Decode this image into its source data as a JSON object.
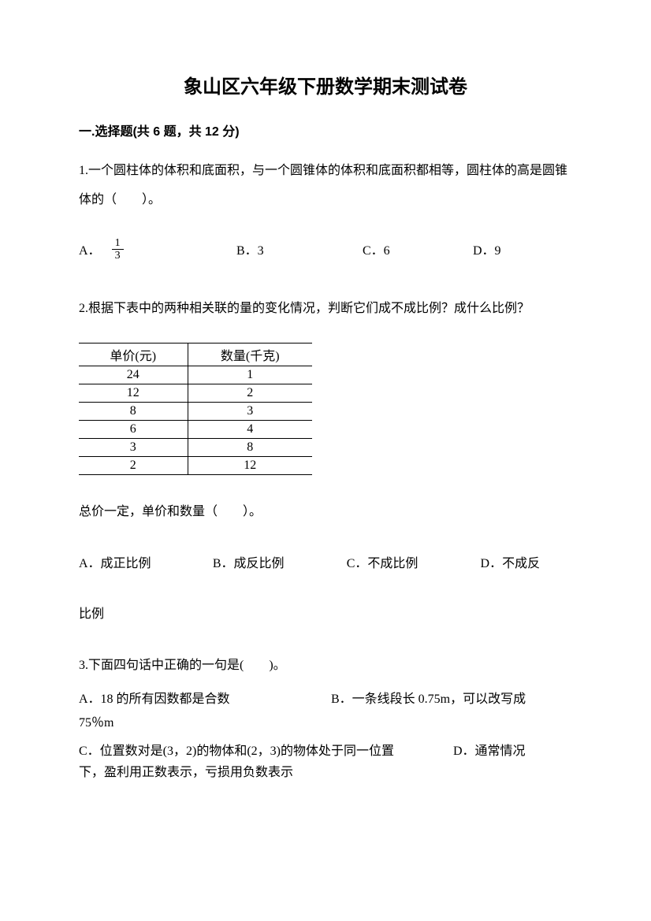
{
  "title": "象山区六年级下册数学期末测试卷",
  "section1": {
    "header": "一.选择题(共 6 题，共 12 分)"
  },
  "q1": {
    "text": "1.一个圆柱体的体积和底面积，与一个圆锥体的体积和底面积都相等，圆柱体的高是圆锥体的（　　）。",
    "optionA_label": "A．",
    "fraction_num": "1",
    "fraction_den": "3",
    "optionB": "B．3",
    "optionC": "C．6",
    "optionD": "D．9"
  },
  "q2": {
    "text": "2.根据下表中的两种相关联的量的变化情况，判断它们成不成比例？成什么比例？",
    "table": {
      "headers": [
        "单价(元)",
        "数量(千克)"
      ],
      "rows": [
        [
          "24",
          "1"
        ],
        [
          "12",
          "2"
        ],
        [
          "8",
          "3"
        ],
        [
          "6",
          "4"
        ],
        [
          "3",
          "8"
        ],
        [
          "2",
          "12"
        ]
      ]
    },
    "summary": "总价一定，单价和数量（　　）。",
    "optionA": "A．成正比例",
    "optionB": "B．成反比例",
    "optionC": "C．不成比例",
    "optionD": "D．不成反",
    "optionD_cont": "比例"
  },
  "q3": {
    "text": "3.下面四句话中正确的一句是(　　)。",
    "optionA": "A．18 的所有因数都是合数",
    "optionB": "B．一条线段长 0.75m，可以改写成",
    "optionB_cont": "75％m",
    "optionC": "C．位置数对是(3，2)的物体和(2，3)的物体处于同一位置",
    "optionD": "D．通常情况",
    "optionD_cont": "下，盈利用正数表示，亏损用负数表示"
  }
}
